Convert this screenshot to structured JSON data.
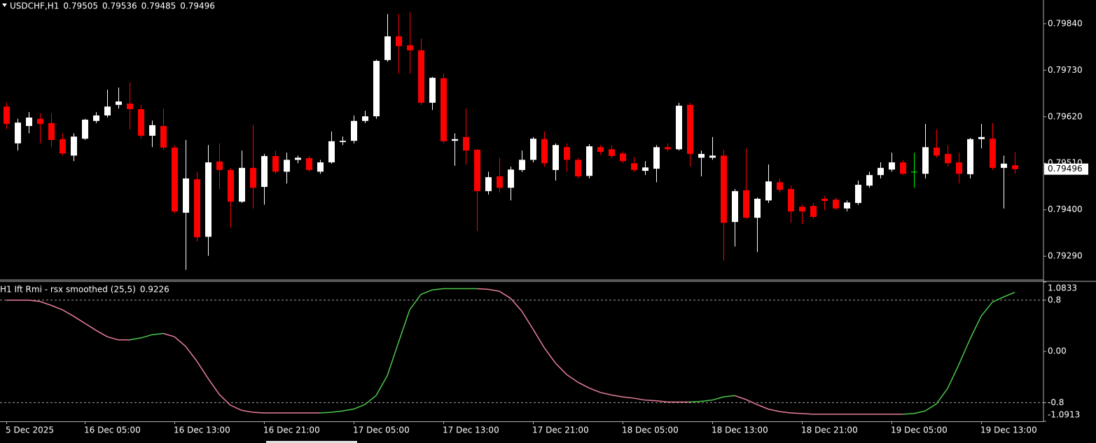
{
  "chart_data": [
    {
      "type": "candlestick",
      "title": "USDCHF,H1",
      "categories": [
        "5 Dec 2025",
        null,
        null,
        null,
        null,
        null,
        null,
        "16 Dec 05:00",
        null,
        null,
        null,
        null,
        null,
        null,
        null,
        "16 Dec 13:00",
        null,
        null,
        null,
        null,
        null,
        null,
        null,
        "16 Dec 21:00",
        null,
        null,
        null,
        null,
        null,
        null,
        null,
        "17 Dec 05:00",
        null,
        null,
        null,
        null,
        null,
        null,
        null,
        "17 Dec 13:00",
        null,
        null,
        null,
        null,
        null,
        null,
        null,
        "17 Dec 21:00",
        null,
        null,
        null,
        null,
        null,
        null,
        null,
        "18 Dec 05:00",
        null,
        null,
        null,
        null,
        null,
        null,
        null,
        "18 Dec 13:00",
        null,
        null,
        null,
        null,
        null,
        null,
        null,
        "18 Dec 21:00",
        null,
        null,
        null,
        null,
        null,
        null,
        null,
        "19 Dec 05:00",
        null,
        null,
        null,
        null,
        null,
        null,
        null,
        "19 Dec 13:00",
        null,
        null,
        null
      ],
      "open": [
        0.79644,
        0.79557,
        0.79598,
        0.79615,
        0.79605,
        0.79567,
        0.79528,
        0.79568,
        0.7961,
        0.79623,
        0.79648,
        0.79651,
        0.79638,
        0.79575,
        0.79598,
        0.79547,
        0.79393,
        0.79472,
        0.79336,
        0.79514,
        0.79494,
        0.79419,
        0.79499,
        0.79454,
        0.79527,
        0.7949,
        0.79518,
        0.79522,
        0.7949,
        0.79512,
        0.7956,
        0.79563,
        0.7961,
        0.79621,
        0.79754,
        0.7981,
        0.79789,
        0.79777,
        0.79653,
        0.79711,
        0.79563,
        0.79572,
        0.79542,
        0.79444,
        0.79479,
        0.79452,
        0.79494,
        0.79518,
        0.79567,
        0.79494,
        0.79548,
        0.79518,
        0.7948,
        0.79548,
        0.79543,
        0.79533,
        0.7951,
        0.79492,
        0.79497,
        0.79548,
        0.79543,
        0.79648,
        0.79523,
        0.79523,
        0.79528,
        0.79371,
        0.79446,
        0.79381,
        0.79422,
        0.79465,
        0.79449,
        0.79407,
        0.79409,
        0.79426,
        0.79424,
        0.79403,
        0.79416,
        0.79457,
        0.79482,
        0.79495,
        0.79512,
        0.7949,
        0.79485,
        0.79547,
        0.79532,
        0.79512,
        0.79484,
        0.79567,
        0.79568,
        0.79499,
        0.79505
      ],
      "high": [
        0.79654,
        0.79615,
        0.79631,
        0.79628,
        0.79628,
        0.79581,
        0.79581,
        0.79615,
        0.79631,
        0.79684,
        0.79689,
        0.79701,
        0.79648,
        0.79611,
        0.79639,
        0.79552,
        0.79565,
        0.7949,
        0.79553,
        0.79557,
        0.79499,
        0.7954,
        0.79601,
        0.79532,
        0.7954,
        0.79535,
        0.79528,
        0.79527,
        0.79518,
        0.79585,
        0.79573,
        0.79623,
        0.79634,
        0.79755,
        0.79863,
        0.79863,
        0.79867,
        0.79805,
        0.79714,
        0.79722,
        0.79581,
        0.79639,
        0.79543,
        0.7949,
        0.79523,
        0.79502,
        0.7954,
        0.79572,
        0.79585,
        0.79557,
        0.79557,
        0.79523,
        0.79555,
        0.79553,
        0.79552,
        0.79538,
        0.79525,
        0.79515,
        0.79553,
        0.79557,
        0.79653,
        0.79653,
        0.7954,
        0.79572,
        0.79542,
        0.79449,
        0.79545,
        0.79429,
        0.79507,
        0.79474,
        0.79457,
        0.79412,
        0.79416,
        0.79432,
        0.79429,
        0.79422,
        0.79469,
        0.7949,
        0.79512,
        0.79535,
        0.79518,
        0.79535,
        0.79603,
        0.7959,
        0.79552,
        0.79535,
        0.7957,
        0.79603,
        0.79605,
        0.79528,
        0.79536
      ],
      "low": [
        0.7959,
        0.7954,
        0.79581,
        0.79557,
        0.79548,
        0.79528,
        0.79515,
        0.79565,
        0.79605,
        0.79618,
        0.79639,
        0.7959,
        0.79568,
        0.79548,
        0.79543,
        0.79391,
        0.79258,
        0.79325,
        0.79291,
        0.79449,
        0.79358,
        0.79416,
        0.79403,
        0.79412,
        0.79485,
        0.79462,
        0.7951,
        0.7949,
        0.79485,
        0.79509,
        0.79553,
        0.79557,
        0.79605,
        0.79615,
        0.7975,
        0.79722,
        0.79722,
        0.79648,
        0.79636,
        0.79557,
        0.79504,
        0.79507,
        0.7935,
        0.79436,
        0.79441,
        0.79422,
        0.79489,
        0.79512,
        0.79502,
        0.79469,
        0.7949,
        0.79474,
        0.79474,
        0.7953,
        0.79522,
        0.7951,
        0.7949,
        0.79482,
        0.79465,
        0.79538,
        0.7954,
        0.79502,
        0.79479,
        0.79518,
        0.7928,
        0.79313,
        0.79379,
        0.793,
        0.79416,
        0.79441,
        0.79369,
        0.79366,
        0.79379,
        0.79399,
        0.79399,
        0.79396,
        0.79412,
        0.79452,
        0.79474,
        0.7949,
        0.79482,
        0.79452,
        0.79474,
        0.79523,
        0.79502,
        0.79462,
        0.79474,
        0.79545,
        0.79494,
        0.79403,
        0.79485
      ],
      "close": [
        0.79603,
        0.79606,
        0.79618,
        0.79603,
        0.79565,
        0.79533,
        0.79573,
        0.79613,
        0.79623,
        0.79644,
        0.79656,
        0.79638,
        0.79575,
        0.796,
        0.79547,
        0.79396,
        0.79474,
        0.79335,
        0.79512,
        0.79494,
        0.79419,
        0.79499,
        0.79452,
        0.79527,
        0.7949,
        0.79518,
        0.79523,
        0.79494,
        0.79512,
        0.79562,
        0.79563,
        0.7961,
        0.79621,
        0.79752,
        0.7981,
        0.79787,
        0.79777,
        0.79653,
        0.79712,
        0.79562,
        0.79567,
        0.7954,
        0.79444,
        0.79477,
        0.79452,
        0.79495,
        0.79518,
        0.79568,
        0.7951,
        0.79553,
        0.79518,
        0.79479,
        0.7955,
        0.79537,
        0.79527,
        0.79515,
        0.79494,
        0.795,
        0.79548,
        0.79543,
        0.79646,
        0.79532,
        0.79532,
        0.79528,
        0.79369,
        0.79444,
        0.79381,
        0.79426,
        0.79467,
        0.79447,
        0.79396,
        0.79396,
        0.79383,
        0.79421,
        0.79403,
        0.79417,
        0.79459,
        0.79482,
        0.79499,
        0.79512,
        0.79485,
        0.7949,
        0.79548,
        0.79528,
        0.7951,
        0.79485,
        0.79567,
        0.79572,
        0.79499,
        0.79509,
        0.79496
      ],
      "up_color": "#ffffff",
      "down_color": "#ff0000",
      "doji_color": "#00ff00",
      "ylim": [
        0.79234,
        0.79896
      ],
      "yticks": [
        {
          "value": 0.7929,
          "label": "0.79290"
        },
        {
          "value": 0.794,
          "label": "0.79400"
        },
        {
          "value": 0.7951,
          "label": "0.79510"
        },
        {
          "value": 0.7962,
          "label": "0.79620"
        },
        {
          "value": 0.7973,
          "label": "0.79730"
        },
        {
          "value": 0.7984,
          "label": "0.79840"
        }
      ]
    },
    {
      "type": "line",
      "title": "H1 Ift Rmi - rsx smoothed (25,5)",
      "values": [
        0.8,
        0.8,
        0.8,
        0.78,
        0.72,
        0.65,
        0.55,
        0.44,
        0.33,
        0.23,
        0.18,
        0.18,
        0.21,
        0.26,
        0.28,
        0.23,
        0.08,
        -0.15,
        -0.42,
        -0.67,
        -0.84,
        -0.92,
        -0.95,
        -0.96,
        -0.96,
        -0.96,
        -0.96,
        -0.96,
        -0.96,
        -0.95,
        -0.93,
        -0.9,
        -0.83,
        -0.69,
        -0.38,
        0.14,
        0.65,
        0.89,
        0.96,
        0.98,
        0.98,
        0.98,
        0.98,
        0.97,
        0.94,
        0.83,
        0.63,
        0.35,
        0.06,
        -0.18,
        -0.36,
        -0.48,
        -0.57,
        -0.64,
        -0.68,
        -0.71,
        -0.73,
        -0.76,
        -0.77,
        -0.79,
        -0.79,
        -0.79,
        -0.78,
        -0.76,
        -0.71,
        -0.69,
        -0.75,
        -0.83,
        -0.9,
        -0.94,
        -0.96,
        -0.97,
        -0.98,
        -0.98,
        -0.98,
        -0.98,
        -0.98,
        -0.98,
        -0.98,
        -0.98,
        -0.98,
        -0.97,
        -0.93,
        -0.82,
        -0.58,
        -0.21,
        0.19,
        0.55,
        0.77,
        0.85,
        0.9226
      ],
      "up_color": "#4cc84c",
      "down_color": "#e8809a",
      "ylim": [
        -1.0913,
        1.0833
      ],
      "yticks": [
        -1.0913,
        -0.8,
        {
          "value": 0,
          "label": "0.00"
        },
        0.8,
        1.0833
      ],
      "levels": [
        0.8,
        -0.8
      ]
    }
  ]
}
